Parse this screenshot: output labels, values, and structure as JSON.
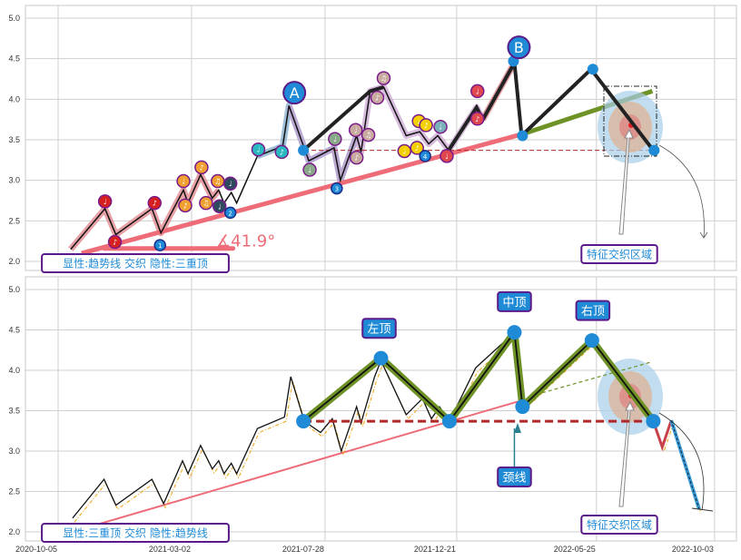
{
  "chart_data": [
    {
      "type": "line",
      "panel": "top",
      "title": "",
      "x_unit": "days since 2020-10-05",
      "ylim": [
        1.9,
        5.2
      ],
      "yticks": [
        "5.0",
        "4.5",
        "4.0",
        "3.5",
        "3.0",
        "2.5",
        "2.0"
      ],
      "ytick_values": [
        5.0,
        4.5,
        4.0,
        3.5,
        3.0,
        2.5,
        2.0
      ],
      "grid": true,
      "legend_box": "显性:趋势线 交织 隐性:三重顶",
      "angle_label": "∡41.9°",
      "zone_label": "特征交织区域",
      "point_labels": [
        {
          "text": "A",
          "d": 262,
          "v": 4.08
        },
        {
          "text": "B",
          "d": 511,
          "v": 4.64
        }
      ],
      "zigzag": [
        [
          14,
          2.15
        ],
        [
          52,
          2.65
        ],
        [
          64,
          2.33
        ],
        [
          104,
          2.65
        ],
        [
          114,
          2.35
        ],
        [
          139,
          2.88
        ],
        [
          144,
          2.72
        ],
        [
          158,
          3.07
        ],
        [
          171,
          2.78
        ],
        [
          178,
          2.88
        ],
        [
          184,
          2.72
        ],
        [
          192,
          2.85
        ],
        [
          198,
          2.72
        ],
        [
          221,
          3.3
        ],
        [
          249,
          3.42
        ],
        [
          256,
          3.92
        ],
        [
          278,
          3.24
        ],
        [
          306,
          3.4
        ],
        [
          313,
          3.0
        ],
        [
          331,
          3.55
        ],
        [
          336,
          3.35
        ],
        [
          346,
          4.1
        ],
        [
          361,
          4.15
        ],
        [
          386,
          3.55
        ],
        [
          401,
          3.6
        ],
        [
          411,
          3.45
        ],
        [
          421,
          3.55
        ],
        [
          433,
          3.37
        ],
        [
          464,
          3.9
        ],
        [
          471,
          3.75
        ],
        [
          506,
          4.45
        ],
        [
          514,
          3.55
        ],
        [
          591,
          4.37
        ],
        [
          660,
          3.37
        ]
      ],
      "trendline": [
        [
          26,
          2.1
        ],
        [
          515,
          3.57
        ]
      ],
      "trend_extension": [
        [
          515,
          3.57
        ],
        [
          659,
          4.1
        ]
      ],
      "angle_baseline": [
        [
          51,
          2.16
        ],
        [
          194,
          2.16
        ]
      ],
      "neckline": {
        "v": 3.37,
        "from": 281,
        "to": 660
      },
      "big_swings": [
        [
          272,
          3.37
        ],
        [
          346,
          4.1
        ],
        [
          361,
          4.15
        ]
      ],
      "markers": [
        {
          "d": 52,
          "v": 2.74,
          "c": "#d62020",
          "t": "♩"
        },
        {
          "d": 63,
          "v": 2.24,
          "c": "#d62020",
          "t": "♪"
        },
        {
          "d": 107,
          "v": 2.72,
          "c": "#d62020",
          "t": "♪"
        },
        {
          "d": 113,
          "v": 2.2,
          "c": "#1f8ad6",
          "t": "1"
        },
        {
          "d": 139,
          "v": 2.99,
          "c": "#f0a030",
          "t": "♩"
        },
        {
          "d": 141,
          "v": 2.69,
          "c": "#f0a030",
          "t": "♪"
        },
        {
          "d": 159,
          "v": 3.16,
          "c": "#f0a030",
          "t": "♪"
        },
        {
          "d": 177,
          "v": 2.99,
          "c": "#f0a030",
          "t": "♫"
        },
        {
          "d": 164,
          "v": 2.72,
          "c": "#f0a030",
          "t": "♫"
        },
        {
          "d": 179,
          "v": 2.68,
          "c": "#2e4a5e",
          "t": "♩"
        },
        {
          "d": 191,
          "v": 2.96,
          "c": "#2e4a5e",
          "t": "♩"
        },
        {
          "d": 191,
          "v": 2.6,
          "c": "#1f8ad6",
          "t": "2"
        },
        {
          "d": 222,
          "v": 3.38,
          "c": "#2ab8c0",
          "t": "♩"
        },
        {
          "d": 248,
          "v": 3.35,
          "c": "#2ab8c0",
          "t": "♪"
        },
        {
          "d": 279,
          "v": 3.13,
          "c": "#8aa88a",
          "t": "♩"
        },
        {
          "d": 307,
          "v": 3.51,
          "c": "#8aa88a",
          "t": "♩"
        },
        {
          "d": 309,
          "v": 2.9,
          "c": "#1f8ad6",
          "t": "3"
        },
        {
          "d": 330,
          "v": 3.62,
          "c": "#c8aaa0",
          "t": "♩"
        },
        {
          "d": 331,
          "v": 3.28,
          "c": "#c8aaa0",
          "t": "♪"
        },
        {
          "d": 354,
          "v": 4.02,
          "c": "#c8aaa0",
          "t": "♪"
        },
        {
          "d": 361,
          "v": 4.26,
          "c": "#c8aaa0",
          "t": "♫"
        },
        {
          "d": 344,
          "v": 3.56,
          "c": "#c8aaa0",
          "t": "♫"
        },
        {
          "d": 384,
          "v": 3.36,
          "c": "#f5d000",
          "t": "♩"
        },
        {
          "d": 400,
          "v": 3.73,
          "c": "#f5d000",
          "t": "♩"
        },
        {
          "d": 408,
          "v": 3.68,
          "c": "#f5d000",
          "t": "♪"
        },
        {
          "d": 398,
          "v": 3.4,
          "c": "#f5d000",
          "t": "♪"
        },
        {
          "d": 424,
          "v": 3.66,
          "c": "#7ab0b8",
          "t": "♩"
        },
        {
          "d": 407,
          "v": 3.3,
          "c": "#1f8ad6",
          "t": "4"
        },
        {
          "d": 465,
          "v": 4.1,
          "c": "#e04850",
          "t": "♩"
        },
        {
          "d": 465,
          "v": 3.76,
          "c": "#e04850",
          "t": "♪"
        },
        {
          "d": 431,
          "v": 3.3,
          "c": "#e04850",
          "t": "♩"
        }
      ],
      "dots": [
        [
          272,
          3.37
        ],
        [
          515,
          3.55
        ],
        [
          593,
          4.37
        ],
        [
          661,
          3.37
        ],
        [
          505,
          4.47
        ]
      ]
    },
    {
      "type": "line",
      "panel": "bottom",
      "ylim": [
        1.9,
        5.2
      ],
      "yticks": [
        "5.0",
        "4.5",
        "4.0",
        "3.5",
        "3.0",
        "2.5",
        "2.0"
      ],
      "ytick_values": [
        5.0,
        4.5,
        4.0,
        3.5,
        3.0,
        2.5,
        2.0
      ],
      "xticks": [
        "2020-10-05",
        "2021-03-02",
        "2021-07-28",
        "2021-12-21",
        "2022-05-25",
        "2022-10-03"
      ],
      "xtick_days": [
        0,
        148,
        296,
        442,
        597,
        728
      ],
      "grid": true,
      "legend_box": "显性:三重顶 交织 隐性:趋势线",
      "zone_label": "特征交织区域",
      "pattern_labels": [
        {
          "text": "左顶",
          "d": 356,
          "v": 4.52
        },
        {
          "text": "中顶",
          "d": 506,
          "v": 4.85
        },
        {
          "text": "右顶",
          "d": 593,
          "v": 4.74
        },
        {
          "text": "颈线",
          "d": 506,
          "v": 2.68
        }
      ],
      "zigzag": [
        [
          16,
          2.17
        ],
        [
          51,
          2.65
        ],
        [
          64,
          2.33
        ],
        [
          104,
          2.65
        ],
        [
          117,
          2.35
        ],
        [
          138,
          2.88
        ],
        [
          144,
          2.72
        ],
        [
          158,
          3.07
        ],
        [
          171,
          2.78
        ],
        [
          178,
          2.88
        ],
        [
          184,
          2.72
        ],
        [
          192,
          2.85
        ],
        [
          198,
          2.72
        ],
        [
          221,
          3.28
        ],
        [
          251,
          3.42
        ],
        [
          258,
          3.92
        ],
        [
          273,
          3.37
        ],
        [
          291,
          3.23
        ],
        [
          304,
          3.4
        ],
        [
          314,
          3.0
        ],
        [
          331,
          3.55
        ],
        [
          336,
          3.35
        ],
        [
          351,
          3.92
        ],
        [
          358,
          4.12
        ],
        [
          386,
          3.45
        ],
        [
          404,
          3.65
        ],
        [
          414,
          3.4
        ],
        [
          423,
          3.55
        ],
        [
          434,
          3.37
        ],
        [
          463,
          4.03
        ],
        [
          506,
          4.47
        ],
        [
          514,
          3.55
        ],
        [
          592,
          4.37
        ],
        [
          660,
          3.37
        ],
        [
          670,
          3.05
        ],
        [
          680,
          3.38
        ],
        [
          711,
          2.28
        ]
      ],
      "triple_top": [
        [
          272,
          3.37
        ],
        [
          358,
          4.15
        ],
        [
          434,
          3.37
        ],
        [
          506,
          4.47
        ],
        [
          515,
          3.55
        ],
        [
          592,
          4.37
        ],
        [
          660,
          3.37
        ]
      ],
      "neckline": {
        "v": 3.37,
        "from": 272,
        "to": 660
      },
      "trendline": [
        [
          46,
          2.1
        ],
        [
          515,
          3.63
        ]
      ],
      "parallel_dashed": [
        [
          530,
          3.7
        ],
        [
          657,
          4.1
        ]
      ],
      "projection": [
        [
          680,
          3.38
        ],
        [
          711,
          2.28
        ]
      ]
    }
  ]
}
